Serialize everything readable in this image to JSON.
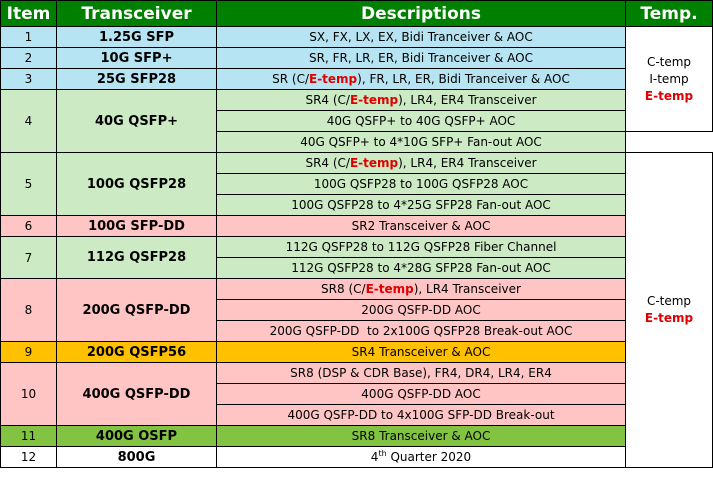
{
  "header": {
    "item": "Item",
    "transceiver": "Transceiver",
    "descriptions": "Descriptions",
    "temp": "Temp."
  },
  "rows": [
    {
      "item": "1",
      "transceiver": "1.25G SFP",
      "color": "#b7e4f2",
      "descs": [
        [
          "SX, FX, LX, EX, Bidi Tranceiver & AOC"
        ]
      ]
    },
    {
      "item": "2",
      "transceiver": "10G SFP+",
      "color": "#b7e4f2",
      "descs": [
        [
          "SR, FR, LR, ER, Bidi Tranceiver & AOC"
        ]
      ]
    },
    {
      "item": "3",
      "transceiver": "25G SFP28",
      "color": "#b7e4f2",
      "descs": [
        [
          "SR (C/",
          "E-temp",
          "), FR, LR, ER, Bidi Tranceiver & AOC"
        ]
      ]
    },
    {
      "item": "4",
      "transceiver": "40G QSFP+",
      "color": "#ccebc4",
      "descs": [
        [
          "SR4 (C/",
          "E-temp",
          "), LR4, ER4 Transceiver"
        ],
        [
          "40G QSFP+ to 40G QSFP+ AOC"
        ],
        [
          "40G QSFP+ to 4*10G SFP+ Fan-out AOC"
        ]
      ]
    },
    {
      "item": "5",
      "transceiver": "100G QSFP28",
      "color": "#ccebc4",
      "descs": [
        [
          "SR4 (C/",
          "E-temp",
          "), LR4, ER4 Transceiver"
        ],
        [
          "100G QSFP28 to 100G QSFP28 AOC"
        ],
        [
          "100G QSFP28 to 4*25G SFP28 Fan-out AOC"
        ]
      ]
    },
    {
      "item": "6",
      "transceiver": "100G SFP-DD",
      "color": "#ffc4c4",
      "descs": [
        [
          "SR2 Transceiver & AOC"
        ]
      ]
    },
    {
      "item": "7",
      "transceiver": "112G QSFP28",
      "color": "#ccebc4",
      "descs": [
        [
          "112G QSFP28 to 112G QSFP28 Fiber Channel"
        ],
        [
          "112G QSFP28 to 4*28G SFP28 Fan-out AOC"
        ]
      ]
    },
    {
      "item": "8",
      "transceiver": "200G QSFP-DD",
      "color": "#ffc4c4",
      "descs": [
        [
          "SR8 (C/",
          "E-temp",
          "), LR4 Transceiver"
        ],
        [
          "200G QSFP-DD AOC"
        ],
        [
          "200G QSFP-DD  to 2x100G QSFP28 Break-out AOC"
        ]
      ]
    },
    {
      "item": "9",
      "transceiver": "200G QSFP56",
      "color": "#ffc000",
      "descs": [
        [
          "SR4 Transceiver & AOC"
        ]
      ]
    },
    {
      "item": "10",
      "transceiver": "400G QSFP-DD",
      "color": "#ffc4c4",
      "descs": [
        [
          "SR8 (DSP & CDR Base), FR4, DR4, LR4, ER4"
        ],
        [
          "400G QSFP-DD AOC"
        ],
        [
          "400G QSFP-DD to 4x100G SFP-DD Break-out"
        ]
      ]
    },
    {
      "item": "11",
      "transceiver": "400G OSFP",
      "color": "#82c341",
      "descs": [
        [
          "SR8 Transceiver & AOC"
        ]
      ]
    },
    {
      "item": "12",
      "transceiver": "800G",
      "color": "#ffffff",
      "descs": [
        [
          "4",
          "th",
          " Quarter 2020"
        ]
      ]
    }
  ],
  "temp_groups": [
    {
      "lines": [
        "C-temp",
        "I-temp",
        "E-temp"
      ],
      "red_last": true
    },
    {
      "lines": [
        "C-temp",
        "E-temp"
      ],
      "red_last": true
    }
  ],
  "colors": {
    "header": "#008000",
    "blue": "#b7e4f2",
    "green": "#ccebc4",
    "pink": "#ffc4c4",
    "orange": "#ffc000",
    "lime": "#82c341",
    "red_text": "#e00000"
  }
}
